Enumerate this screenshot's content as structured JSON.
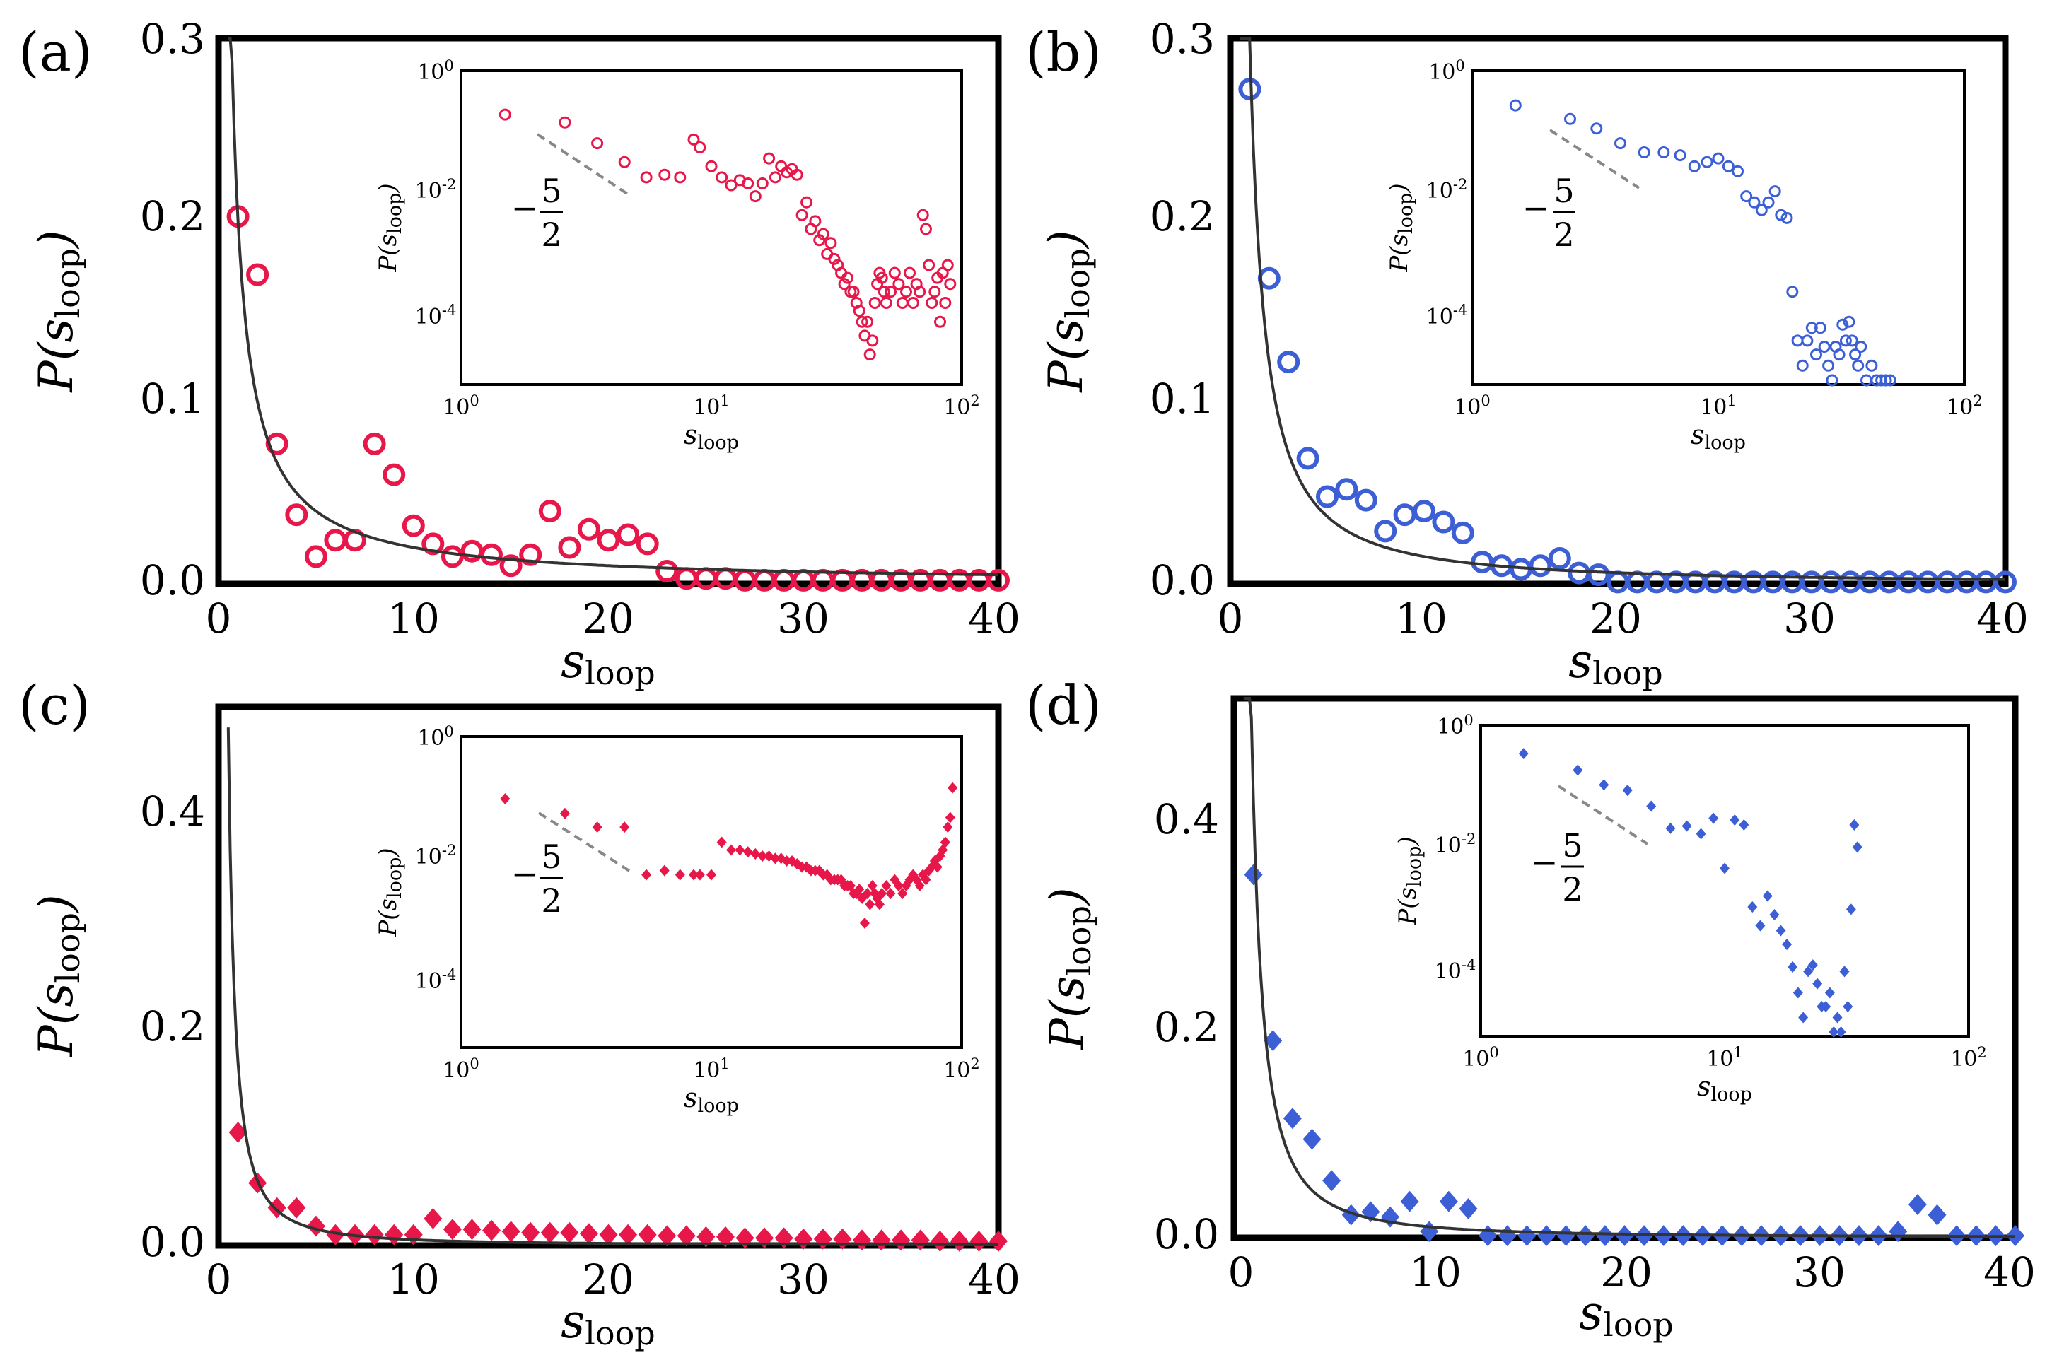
{
  "colors": {
    "red": "#e8174a",
    "blue": "#3d5fd6",
    "fit": "#333333",
    "guide": "#888888"
  },
  "common": {
    "x_label_main": "s",
    "x_label_sub": "loop",
    "y_label_prefix": "P(",
    "y_label_var": "s",
    "y_label_sub": "loop",
    "y_label_suffix": ")",
    "x_ticks": [
      "0",
      "10",
      "20",
      "30",
      "40"
    ],
    "inset_x_ticks": [
      "10",
      "10",
      "10"
    ],
    "inset_x_tick_exp": [
      "0",
      "1",
      "2"
    ],
    "inset_y_ticks": [
      "10",
      "10",
      "10"
    ],
    "inset_y_tick_exp": [
      "0",
      "-2",
      "-4"
    ],
    "slope_sign": "−",
    "slope_num": "5",
    "slope_den": "2"
  },
  "chart_data": [
    {
      "id": "a",
      "label": "(a)",
      "type": "scatter",
      "marker": "circle",
      "color": "red",
      "xlim": [
        0,
        40
      ],
      "ylim": [
        0,
        0.3
      ],
      "y_ticks": [
        "0.0",
        "0.1",
        "0.2",
        "0.3"
      ],
      "x": [
        1,
        2,
        3,
        4,
        5,
        6,
        7,
        8,
        9,
        10,
        11,
        12,
        13,
        14,
        15,
        16,
        17,
        18,
        19,
        20,
        21,
        22,
        23,
        24,
        25,
        26,
        27,
        28,
        29,
        30,
        31,
        32,
        33,
        34,
        35,
        36,
        37,
        38,
        39,
        40
      ],
      "y": [
        0.202,
        0.17,
        0.077,
        0.038,
        0.015,
        0.024,
        0.024,
        0.077,
        0.06,
        0.032,
        0.022,
        0.015,
        0.018,
        0.016,
        0.01,
        0.016,
        0.04,
        0.02,
        0.03,
        0.024,
        0.027,
        0.022,
        0.007,
        0.003,
        0.003,
        0.003,
        0.002,
        0.002,
        0.002,
        0.002,
        0.002,
        0.002,
        0.002,
        0.002,
        0.002,
        0.002,
        0.002,
        0.002,
        0.002,
        0.002
      ],
      "fit": {
        "form": "power",
        "amplitude": 0.2,
        "exponent": -1
      },
      "inset": {
        "x": [
          1.5,
          2.6,
          3.5,
          4.5,
          5.5,
          6.5,
          7.5,
          8.5,
          9,
          10,
          11,
          12,
          13,
          14,
          15,
          16,
          17,
          18,
          19,
          20,
          21,
          22,
          23,
          24,
          25,
          26,
          27,
          28,
          29,
          30,
          31,
          32,
          33,
          34,
          35,
          36,
          37,
          38,
          39,
          40,
          41,
          42,
          43,
          44,
          45,
          46,
          47,
          48,
          49,
          50,
          52,
          54,
          56,
          58,
          60,
          62,
          64,
          66,
          68,
          70,
          72,
          74,
          76,
          78,
          80,
          82,
          84,
          86,
          88,
          90
        ],
        "y": [
          0.2,
          0.15,
          0.07,
          0.035,
          0.02,
          0.022,
          0.02,
          0.08,
          0.06,
          0.03,
          0.02,
          0.015,
          0.018,
          0.016,
          0.01,
          0.016,
          0.04,
          0.02,
          0.03,
          0.024,
          0.027,
          0.022,
          0.005,
          0.008,
          0.003,
          0.004,
          0.002,
          0.0025,
          0.0012,
          0.0018,
          0.001,
          0.0008,
          0.0006,
          0.0004,
          0.0005,
          0.0003,
          0.0003,
          0.0002,
          0.00015,
          0.0001,
          6e-05,
          0.0001,
          3e-05,
          5e-05,
          0.0002,
          0.0004,
          0.0006,
          0.0005,
          0.0003,
          0.0002,
          0.0003,
          0.0006,
          0.0004,
          0.0002,
          0.0003,
          0.0006,
          0.0002,
          0.0004,
          0.0003,
          0.005,
          0.003,
          0.0008,
          0.0002,
          0.0003,
          0.0005,
          0.0001,
          0.0006,
          0.0002,
          0.0008,
          0.0004
        ],
        "xlim": [
          1,
          100
        ],
        "ylim": [
          1e-05,
          1
        ]
      }
    },
    {
      "id": "b",
      "label": "(b)",
      "type": "scatter",
      "marker": "circle",
      "color": "blue",
      "xlim": [
        0,
        40
      ],
      "ylim": [
        0,
        0.3
      ],
      "y_ticks": [
        "0.0",
        "0.1",
        "0.2",
        "0.3"
      ],
      "x": [
        1,
        2,
        3,
        4,
        5,
        6,
        7,
        8,
        9,
        10,
        11,
        12,
        13,
        14,
        15,
        16,
        17,
        18,
        19,
        20,
        21,
        22,
        23,
        24,
        25,
        26,
        27,
        28,
        29,
        30,
        31,
        32,
        33,
        34,
        35,
        36,
        37,
        38,
        39,
        40
      ],
      "y": [
        0.272,
        0.168,
        0.122,
        0.069,
        0.048,
        0.052,
        0.046,
        0.029,
        0.038,
        0.04,
        0.034,
        0.028,
        0.012,
        0.01,
        0.008,
        0.01,
        0.014,
        0.006,
        0.005,
        0.001,
        0.001,
        0.001,
        0.001,
        0.001,
        0.001,
        0.001,
        0.001,
        0.001,
        0.001,
        0.001,
        0.001,
        0.001,
        0.001,
        0.001,
        0.001,
        0.001,
        0.001,
        0.001,
        0.001,
        0.001
      ],
      "fit": {
        "form": "power",
        "amplitude": 0.3,
        "exponent": -1.3
      },
      "inset": {
        "x": [
          1.5,
          2.5,
          3.2,
          4,
          5,
          6,
          7,
          8,
          9,
          10,
          11,
          12,
          13,
          14,
          15,
          16,
          17,
          18,
          19,
          20,
          21,
          22,
          23,
          24,
          25,
          26,
          27,
          28,
          29,
          30,
          31,
          32,
          33,
          34,
          35,
          36,
          37,
          38,
          40,
          42,
          44,
          46,
          48,
          50
        ],
        "y": [
          0.28,
          0.17,
          0.12,
          0.07,
          0.05,
          0.05,
          0.045,
          0.03,
          0.035,
          0.04,
          0.03,
          0.025,
          0.01,
          0.008,
          0.006,
          0.008,
          0.012,
          0.005,
          0.0045,
          0.0003,
          5e-05,
          2e-05,
          5e-05,
          8e-05,
          3e-05,
          8e-05,
          4e-05,
          2e-05,
          1e-05,
          4e-05,
          3e-05,
          9e-05,
          5e-05,
          0.0001,
          5e-05,
          3e-05,
          2e-05,
          4e-05,
          1e-05,
          2e-05,
          1e-05,
          1e-05,
          1e-05,
          1e-05
        ],
        "xlim": [
          1,
          100
        ],
        "ylim": [
          1e-05,
          1
        ]
      }
    },
    {
      "id": "c",
      "label": "(c)",
      "type": "scatter",
      "marker": "diamond",
      "color": "red",
      "xlim": [
        0,
        40
      ],
      "ylim": [
        0,
        0.5
      ],
      "y_ticks": [
        "0.0",
        "0.2",
        "0.4"
      ],
      "x": [
        1,
        2,
        3,
        4,
        5,
        6,
        7,
        8,
        9,
        10,
        11,
        12,
        13,
        14,
        15,
        16,
        17,
        18,
        19,
        20,
        21,
        22,
        23,
        24,
        25,
        26,
        27,
        28,
        29,
        30,
        31,
        32,
        33,
        34,
        35,
        36,
        37,
        38,
        39,
        40
      ],
      "y": [
        0.105,
        0.058,
        0.035,
        0.035,
        0.018,
        0.01,
        0.01,
        0.01,
        0.01,
        0.01,
        0.025,
        0.015,
        0.015,
        0.014,
        0.013,
        0.012,
        0.012,
        0.012,
        0.011,
        0.01,
        0.01,
        0.01,
        0.009,
        0.009,
        0.008,
        0.008,
        0.007,
        0.007,
        0.007,
        0.006,
        0.006,
        0.006,
        0.005,
        0.005,
        0.005,
        0.005,
        0.004,
        0.004,
        0.004,
        0.004
      ],
      "fit": {
        "form": "power",
        "amplitude": 0.17,
        "exponent": -1.5
      },
      "inset": {
        "x": [
          1.5,
          2.6,
          3.5,
          4.5,
          5.5,
          6.5,
          7.5,
          8.5,
          9,
          10,
          11,
          12,
          13,
          14,
          15,
          16,
          17,
          18,
          19,
          20,
          21,
          22,
          23,
          24,
          25,
          26,
          27,
          28,
          29,
          30,
          31,
          32,
          33,
          34,
          35,
          36,
          37,
          38,
          39,
          40,
          41,
          42,
          43,
          44,
          45,
          46,
          47,
          48,
          50,
          52,
          54,
          56,
          58,
          60,
          62,
          64,
          66,
          68,
          70,
          72,
          74,
          76,
          78,
          80,
          82,
          84,
          86,
          88,
          90,
          92
        ],
        "y": [
          0.1,
          0.058,
          0.035,
          0.035,
          0.006,
          0.007,
          0.006,
          0.006,
          0.006,
          0.006,
          0.02,
          0.015,
          0.015,
          0.014,
          0.013,
          0.012,
          0.012,
          0.011,
          0.011,
          0.01,
          0.01,
          0.009,
          0.008,
          0.008,
          0.007,
          0.007,
          0.007,
          0.006,
          0.006,
          0.005,
          0.005,
          0.005,
          0.005,
          0.004,
          0.004,
          0.004,
          0.003,
          0.003,
          0.0035,
          0.0025,
          0.001,
          0.003,
          0.002,
          0.004,
          0.003,
          0.0025,
          0.002,
          0.003,
          0.004,
          0.003,
          0.005,
          0.004,
          0.003,
          0.004,
          0.005,
          0.006,
          0.005,
          0.004,
          0.006,
          0.005,
          0.007,
          0.008,
          0.01,
          0.008,
          0.012,
          0.015,
          0.02,
          0.035,
          0.05,
          0.15
        ],
        "xlim": [
          1,
          100
        ],
        "ylim": [
          1e-05,
          1
        ]
      }
    },
    {
      "id": "d",
      "label": "(d)",
      "type": "scatter",
      "marker": "diamond",
      "color": "blue",
      "xlim": [
        0,
        40
      ],
      "ylim": [
        0,
        0.52
      ],
      "y_ticks": [
        "0.0",
        "0.2",
        "0.4"
      ],
      "x": [
        1,
        2,
        3,
        4,
        5,
        6,
        7,
        8,
        9,
        10,
        11,
        12,
        13,
        14,
        15,
        16,
        17,
        18,
        19,
        20,
        21,
        22,
        23,
        24,
        25,
        26,
        27,
        28,
        29,
        30,
        31,
        32,
        33,
        34,
        35,
        36,
        37,
        38,
        39,
        40
      ],
      "y": [
        0.35,
        0.19,
        0.115,
        0.095,
        0.055,
        0.022,
        0.025,
        0.02,
        0.035,
        0.006,
        0.035,
        0.028,
        0.002,
        0.002,
        0.002,
        0.002,
        0.002,
        0.002,
        0.002,
        0.002,
        0.002,
        0.002,
        0.002,
        0.002,
        0.002,
        0.002,
        0.002,
        0.002,
        0.002,
        0.002,
        0.002,
        0.002,
        0.002,
        0.006,
        0.032,
        0.022,
        0.002,
        0.002,
        0.002,
        0.002
      ],
      "fit": {
        "form": "power",
        "amplitude": 0.42,
        "exponent": -1.6
      },
      "inset": {
        "x": [
          1.5,
          2.5,
          3.2,
          4,
          5,
          6,
          7,
          8,
          9,
          10,
          11,
          12,
          13,
          14,
          15,
          16,
          17,
          18,
          19,
          20,
          21,
          22,
          23,
          24,
          25,
          26,
          27,
          28,
          29,
          30,
          31,
          32,
          33,
          34,
          35
        ],
        "y": [
          0.35,
          0.19,
          0.11,
          0.09,
          0.05,
          0.022,
          0.024,
          0.018,
          0.032,
          0.005,
          0.03,
          0.025,
          0.0012,
          0.0006,
          0.0018,
          0.0009,
          0.0005,
          0.0003,
          0.00013,
          5e-05,
          2e-05,
          0.00011,
          0.00014,
          7e-05,
          3e-05,
          3e-05,
          5e-05,
          1e-05,
          2e-05,
          1e-05,
          0.00011,
          3e-05,
          0.0011,
          0.025,
          0.011
        ],
        "xlim": [
          1,
          100
        ],
        "ylim": [
          1e-05,
          1
        ]
      }
    }
  ]
}
